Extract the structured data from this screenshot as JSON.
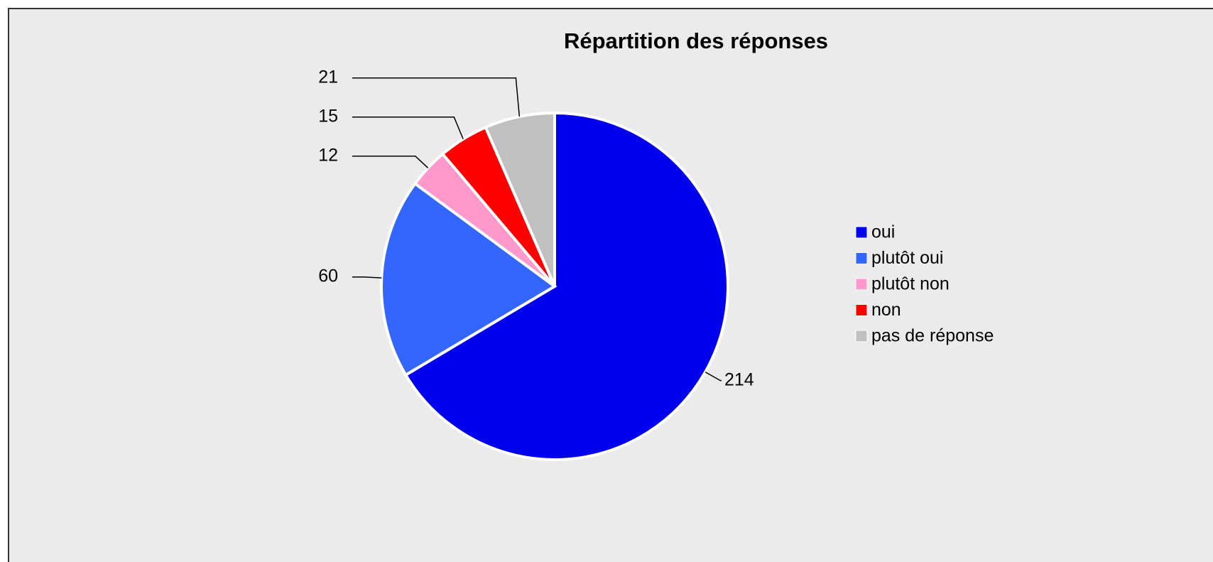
{
  "chart_data": {
    "type": "pie",
    "title": "Répartition des réponses",
    "categories": [
      "oui",
      "plutôt oui",
      "plutôt non",
      "non",
      "pas de réponse"
    ],
    "values": [
      214,
      60,
      12,
      15,
      21
    ],
    "colors": [
      "#0000ee",
      "#3366ff",
      "#ff99cc",
      "#ff0000",
      "#c0c0c0"
    ],
    "legend": "right"
  }
}
